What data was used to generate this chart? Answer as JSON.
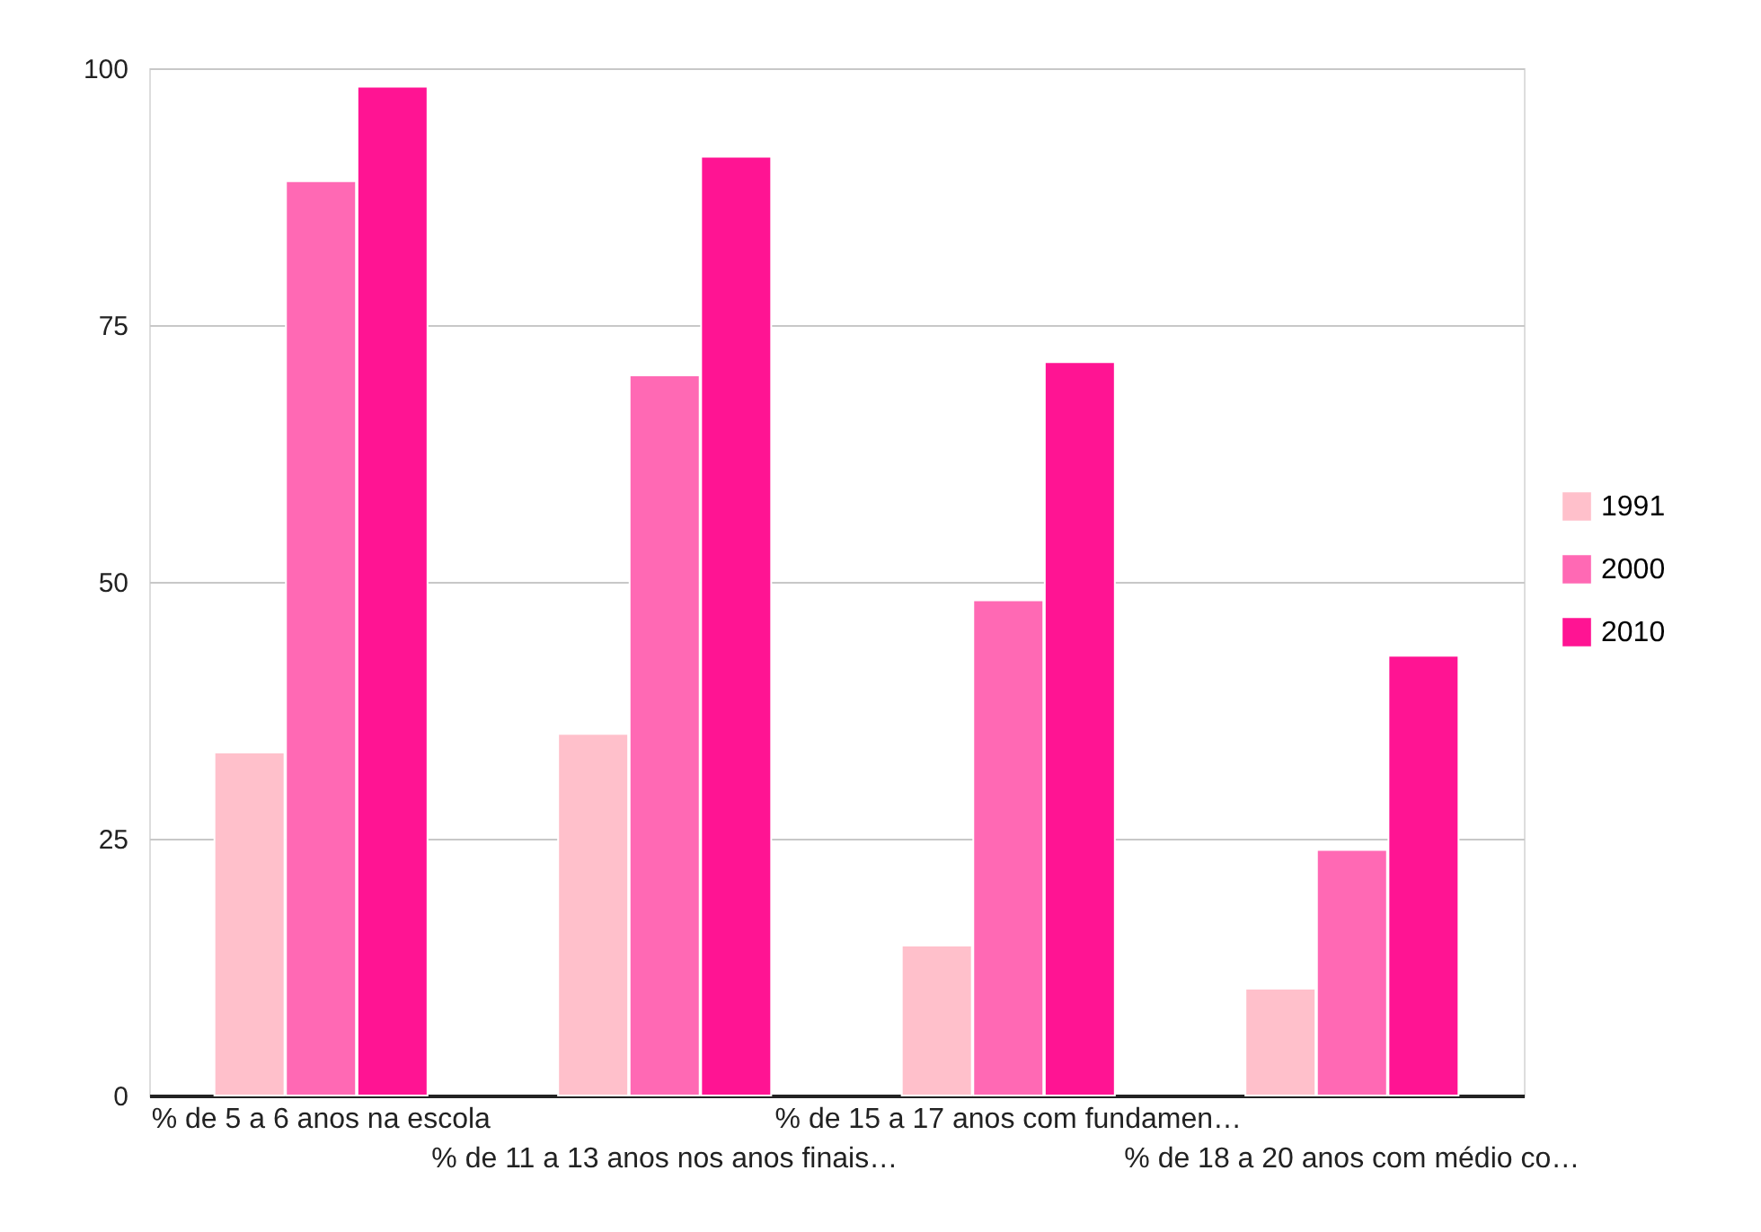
{
  "chart_data": {
    "type": "bar",
    "categories": [
      "% de 5 a 6 anos na escola",
      "% de 11 a 13 anos nos anos finais…",
      "% de 15 a 17 anos com fundamen…",
      "% de 18 a 20 anos com médio co…"
    ],
    "series": [
      {
        "name": "1991",
        "color": "#ffc0cb",
        "values": [
          33.4,
          35.2,
          14.6,
          10.4
        ]
      },
      {
        "name": "2000",
        "color": "#ff69b4",
        "values": [
          89.0,
          70.1,
          48.2,
          23.9
        ]
      },
      {
        "name": "2010",
        "color": "#ff1493",
        "values": [
          98.2,
          91.4,
          71.4,
          42.8
        ]
      }
    ],
    "ylim": [
      0,
      100
    ],
    "yticks": [
      0,
      25,
      50,
      75,
      100
    ],
    "grid": "y",
    "legend": "right"
  }
}
